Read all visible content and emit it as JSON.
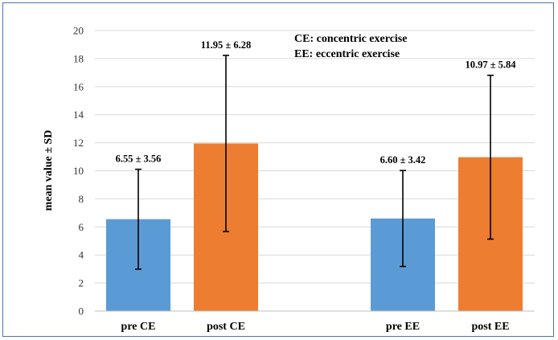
{
  "chart_data": {
    "type": "bar",
    "categories": [
      "pre CE",
      "post CE",
      "pre EE",
      "post EE"
    ],
    "values": [
      6.55,
      11.95,
      6.6,
      10.97
    ],
    "sd": [
      3.56,
      6.28,
      3.42,
      5.84
    ],
    "data_labels": [
      "6.55 ± 3.56",
      "11.95 ± 6.28",
      "6.60 ± 3.42",
      "10.97 ± 5.84"
    ],
    "colors": [
      "#5b9bd5",
      "#ed7d31",
      "#5b9bd5",
      "#ed7d31"
    ],
    "ylabel": "mean value ± SD",
    "ylim": [
      0,
      20
    ],
    "yticks": [
      "0",
      "2",
      "4",
      "6",
      "8",
      "10",
      "12",
      "14",
      "16",
      "18",
      "20"
    ],
    "grid": true,
    "annotations": [
      "CE: concentric exercise",
      "EE: eccentric exercise"
    ]
  }
}
